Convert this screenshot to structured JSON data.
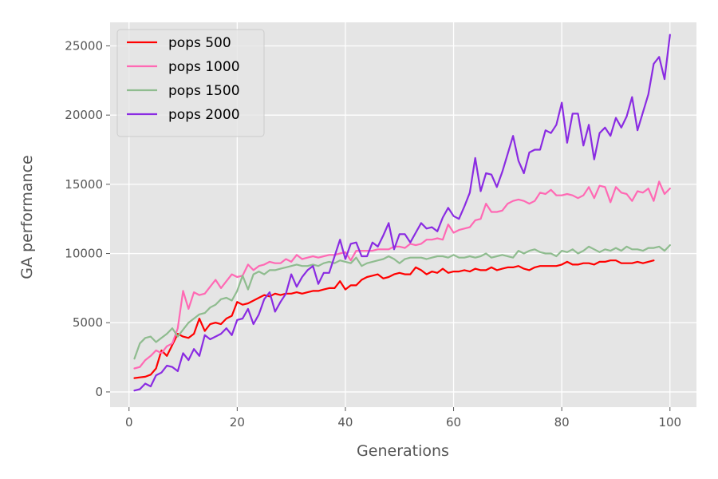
{
  "chart_data": {
    "type": "line",
    "title": "",
    "xlabel": "Generations",
    "ylabel": "GA performance",
    "xlim": [
      -3.5,
      104.9
    ],
    "ylim": [
      -1100,
      26700
    ],
    "xticks": [
      0,
      20,
      40,
      60,
      80,
      100
    ],
    "xtick_labels": [
      "0",
      "20",
      "40",
      "60",
      "80",
      "100"
    ],
    "yticks": [
      0,
      5000,
      10000,
      15000,
      20000,
      25000
    ],
    "ytick_labels": [
      "0",
      "5000",
      "10000",
      "15000",
      "20000",
      "25000"
    ],
    "grid": true,
    "legend_position": "top-left",
    "style": {
      "plot_background": "#e5e5e5",
      "grid_color": "#ffffff",
      "tick_color": "#555555"
    },
    "series": [
      {
        "name": "pops 500",
        "color": "#ff0000",
        "x": [
          1,
          2,
          3,
          4,
          5,
          6,
          7,
          8,
          9,
          10,
          11,
          12,
          13,
          14,
          15,
          16,
          17,
          18,
          19,
          20,
          21,
          22,
          23,
          24,
          25,
          26,
          27,
          28,
          29,
          30,
          31,
          32,
          33,
          34,
          35,
          36,
          37,
          38,
          39,
          40,
          41,
          42,
          43,
          44,
          45,
          46,
          47,
          48,
          49,
          50,
          51,
          52,
          53,
          54,
          55,
          56,
          57,
          58,
          59,
          60,
          61,
          62,
          63,
          64,
          65,
          66,
          67,
          68,
          69,
          70,
          71,
          72,
          73,
          74,
          75,
          76,
          77,
          78,
          79,
          80,
          81,
          82,
          83,
          84,
          85,
          86,
          87,
          88,
          89,
          90,
          91,
          92,
          93,
          94,
          95,
          96,
          97
        ],
        "y": [
          1000,
          1050,
          1100,
          1250,
          1700,
          3000,
          2600,
          3400,
          4200,
          4000,
          3900,
          4200,
          5300,
          4400,
          4900,
          5000,
          4900,
          5300,
          5500,
          6500,
          6300,
          6400,
          6600,
          6800,
          7000,
          6900,
          7100,
          7000,
          7100,
          7100,
          7200,
          7100,
          7200,
          7300,
          7300,
          7400,
          7500,
          7500,
          8000,
          7400,
          7700,
          7700,
          8100,
          8300,
          8400,
          8500,
          8200,
          8300,
          8500,
          8600,
          8500,
          8500,
          9000,
          8800,
          8500,
          8700,
          8600,
          8900,
          8600,
          8700,
          8700,
          8800,
          8700,
          8900,
          8800,
          8800,
          9000,
          8800,
          8900,
          9000,
          9000,
          9100,
          8900,
          8800,
          9000,
          9100,
          9100,
          9100,
          9100,
          9200,
          9400,
          9200,
          9200,
          9300,
          9300,
          9200,
          9400,
          9400,
          9500,
          9500,
          9300,
          9300,
          9300,
          9400,
          9300,
          9400,
          9500
        ]
      },
      {
        "name": "pops 1000",
        "color": "#ff69b4",
        "x": [
          1,
          2,
          3,
          4,
          5,
          6,
          7,
          8,
          9,
          10,
          11,
          12,
          13,
          14,
          15,
          16,
          17,
          18,
          19,
          20,
          21,
          22,
          23,
          24,
          25,
          26,
          27,
          28,
          29,
          30,
          31,
          32,
          33,
          34,
          35,
          36,
          37,
          38,
          39,
          40,
          41,
          42,
          43,
          44,
          45,
          46,
          47,
          48,
          49,
          50,
          51,
          52,
          53,
          54,
          55,
          56,
          57,
          58,
          59,
          60,
          61,
          62,
          63,
          64,
          65,
          66,
          67,
          68,
          69,
          70,
          71,
          72,
          73,
          74,
          75,
          76,
          77,
          78,
          79,
          80,
          81,
          82,
          83,
          84,
          85,
          86,
          87,
          88,
          89,
          90,
          91,
          92,
          93,
          94,
          95,
          96,
          97,
          98,
          99,
          100
        ],
        "y": [
          1700,
          1800,
          2300,
          2600,
          3000,
          2800,
          3300,
          3500,
          4600,
          7300,
          6000,
          7200,
          7000,
          7100,
          7600,
          8100,
          7500,
          8000,
          8500,
          8300,
          8400,
          9200,
          8800,
          9100,
          9200,
          9400,
          9300,
          9300,
          9600,
          9400,
          9900,
          9600,
          9700,
          9800,
          9700,
          9800,
          9900,
          9900,
          10000,
          10100,
          9500,
          10200,
          10200,
          10200,
          10200,
          10300,
          10300,
          10300,
          10500,
          10500,
          10400,
          10700,
          10600,
          10700,
          11000,
          11000,
          11100,
          11000,
          12100,
          11500,
          11700,
          11800,
          11900,
          12400,
          12500,
          13600,
          13000,
          13000,
          13100,
          13600,
          13800,
          13900,
          13800,
          13600,
          13800,
          14400,
          14300,
          14600,
          14200,
          14200,
          14300,
          14200,
          14000,
          14200,
          14800,
          14000,
          14900,
          14800,
          13700,
          14800,
          14400,
          14300,
          13800,
          14500,
          14400,
          14700,
          13800,
          15200,
          14300,
          14700
        ]
      },
      {
        "name": "pops 1500",
        "color": "#8fbc8f",
        "x": [
          1,
          2,
          3,
          4,
          5,
          6,
          7,
          8,
          9,
          10,
          11,
          12,
          13,
          14,
          15,
          16,
          17,
          18,
          19,
          20,
          21,
          22,
          23,
          24,
          25,
          26,
          27,
          28,
          29,
          30,
          31,
          32,
          33,
          34,
          35,
          36,
          37,
          38,
          39,
          40,
          41,
          42,
          43,
          44,
          45,
          46,
          47,
          48,
          49,
          50,
          51,
          52,
          53,
          54,
          55,
          56,
          57,
          58,
          59,
          60,
          61,
          62,
          63,
          64,
          65,
          66,
          67,
          68,
          69,
          70,
          71,
          72,
          73,
          74,
          75,
          76,
          77,
          78,
          79,
          80,
          81,
          82,
          83,
          84,
          85,
          86,
          87,
          88,
          89,
          90,
          91,
          92,
          93,
          94,
          95,
          96,
          97,
          98,
          99,
          100
        ],
        "y": [
          2400,
          3500,
          3900,
          4000,
          3600,
          3900,
          4200,
          4600,
          4000,
          4500,
          5000,
          5300,
          5600,
          5700,
          6100,
          6300,
          6700,
          6800,
          6600,
          7300,
          8400,
          7400,
          8500,
          8700,
          8500,
          8800,
          8800,
          8900,
          9000,
          9100,
          9200,
          9100,
          9100,
          9200,
          9100,
          9300,
          9400,
          9300,
          9500,
          9400,
          9300,
          9700,
          9100,
          9300,
          9400,
          9500,
          9600,
          9800,
          9600,
          9300,
          9600,
          9700,
          9700,
          9700,
          9600,
          9700,
          9800,
          9800,
          9700,
          9900,
          9700,
          9700,
          9800,
          9700,
          9800,
          10000,
          9700,
          9800,
          9900,
          9800,
          9700,
          10200,
          10000,
          10200,
          10300,
          10100,
          10000,
          10000,
          9800,
          10200,
          10100,
          10300,
          10000,
          10200,
          10500,
          10300,
          10100,
          10300,
          10200,
          10400,
          10200,
          10500,
          10300,
          10300,
          10200,
          10400,
          10400,
          10500,
          10200,
          10600
        ]
      },
      {
        "name": "pops 2000",
        "color": "#8a2be2",
        "x": [
          1,
          2,
          3,
          4,
          5,
          6,
          7,
          8,
          9,
          10,
          11,
          12,
          13,
          14,
          15,
          16,
          17,
          18,
          19,
          20,
          21,
          22,
          23,
          24,
          25,
          26,
          27,
          28,
          29,
          30,
          31,
          32,
          33,
          34,
          35,
          36,
          37,
          38,
          39,
          40,
          41,
          42,
          43,
          44,
          45,
          46,
          47,
          48,
          49,
          50,
          51,
          52,
          53,
          54,
          55,
          56,
          57,
          58,
          59,
          60,
          61,
          62,
          63,
          64,
          65,
          66,
          67,
          68,
          69,
          70,
          71,
          72,
          73,
          74,
          75,
          76,
          77,
          78,
          79,
          80,
          81,
          82,
          83,
          84,
          85,
          86,
          87,
          88,
          89,
          90,
          91,
          92,
          93,
          94,
          95,
          96,
          97,
          98,
          99,
          100
        ],
        "y": [
          100,
          200,
          600,
          400,
          1200,
          1400,
          1900,
          1800,
          1500,
          2800,
          2300,
          3100,
          2600,
          4100,
          3800,
          4000,
          4200,
          4600,
          4100,
          5200,
          5300,
          6000,
          4900,
          5600,
          6700,
          7200,
          5800,
          6500,
          7100,
          8500,
          7600,
          8300,
          8800,
          9100,
          7800,
          8600,
          8600,
          9800,
          11000,
          9600,
          10700,
          10800,
          9800,
          9800,
          10800,
          10500,
          11300,
          12200,
          10300,
          11400,
          11400,
          10800,
          11500,
          12200,
          11800,
          11900,
          11600,
          12600,
          13300,
          12700,
          12500,
          13400,
          14400,
          16900,
          14500,
          15800,
          15700,
          14800,
          15900,
          17200,
          18500,
          16700,
          15800,
          17300,
          17500,
          17500,
          18900,
          18700,
          19300,
          20900,
          18000,
          20100,
          20100,
          17800,
          19300,
          16800,
          18700,
          19100,
          18500,
          19800,
          19100,
          19900,
          21300,
          18900,
          20200,
          21500,
          23700,
          24200,
          22600,
          25800
        ]
      }
    ]
  }
}
